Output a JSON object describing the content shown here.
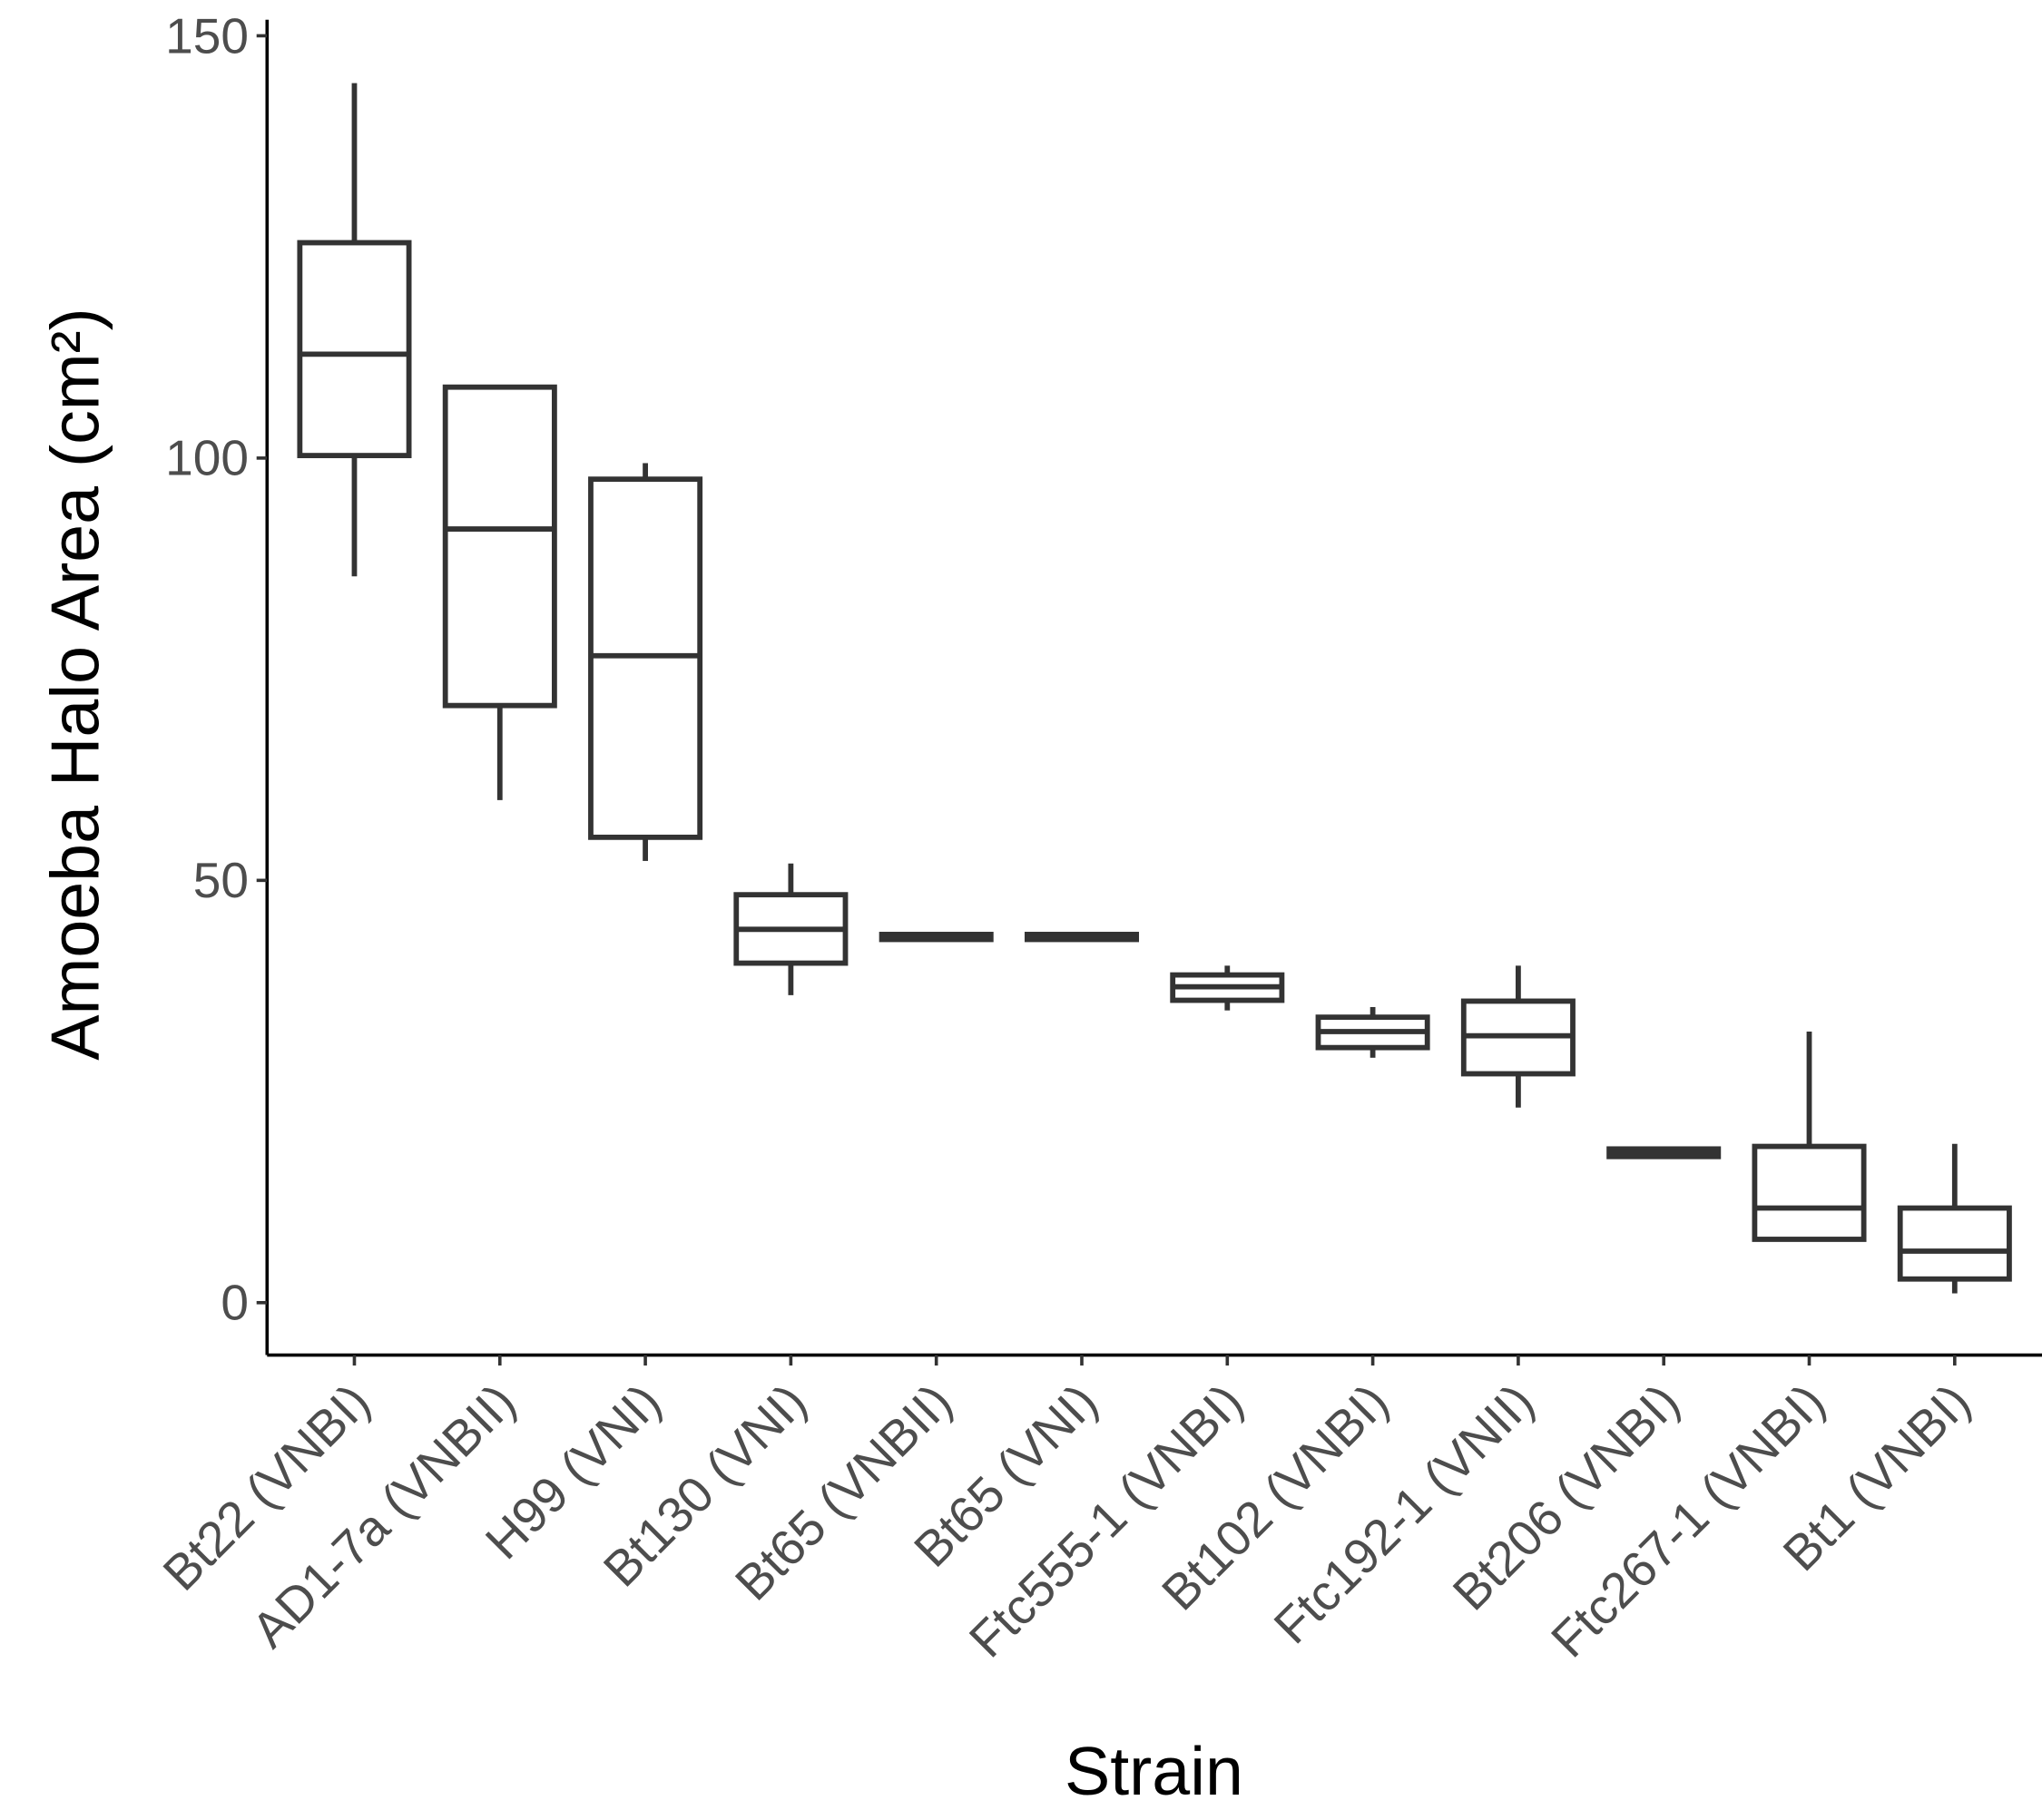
{
  "chart_data": {
    "type": "box",
    "x_label": "Strain",
    "y_label": "Amoeba Halo Area (cm²)",
    "categories": [
      "Bt22 (VNBI)",
      "AD1-7a (VNBII)",
      "H99 (VNI)",
      "Bt130 (VNI)",
      "Bt65 (VNBII)",
      "Bt65 (VNI)",
      "Ftc555-1 (VNBI)",
      "Bt102 (VNBI)",
      "Ftc192-1 (VNII)",
      "Bt206 (VNBI)",
      "Ftc267-1 (VNBI)",
      "Bt1 (VNBI)"
    ],
    "whisker_low": [
      86.0,
      59.5,
      52.3,
      36.4,
      43.0,
      43.0,
      34.6,
      29.0,
      23.1,
      17.1,
      7.5,
      1.1
    ],
    "q1": [
      100.3,
      70.7,
      55.1,
      40.2,
      43.0,
      43.0,
      35.8,
      30.2,
      27.1,
      17.3,
      7.5,
      2.8
    ],
    "median": [
      112.3,
      91.6,
      76.6,
      44.2,
      43.3,
      43.3,
      37.4,
      32.1,
      31.6,
      17.8,
      11.2,
      6.1
    ],
    "q3": [
      125.5,
      108.4,
      97.5,
      48.3,
      43.6,
      43.6,
      38.8,
      33.8,
      35.7,
      18.2,
      18.5,
      11.2
    ],
    "whisker_high": [
      144.4,
      108.4,
      99.4,
      52.0,
      43.6,
      43.6,
      39.9,
      35.0,
      39.9,
      18.3,
      32.1,
      18.8
    ],
    "color": "#333333",
    "ylim": [
      -6.2,
      151.9
    ],
    "yticks": [
      0,
      50,
      100,
      150
    ],
    "grid": false
  }
}
